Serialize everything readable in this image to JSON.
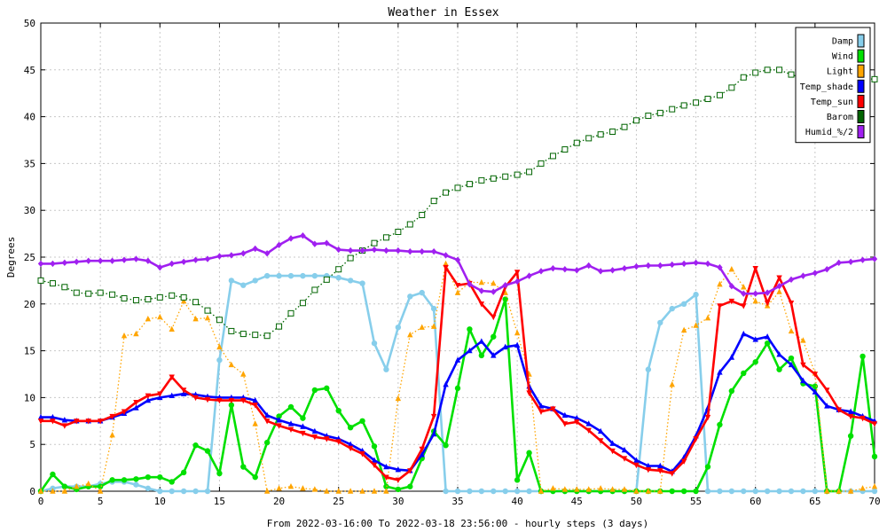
{
  "chart_data": {
    "type": "line",
    "title": "Weather in Essex",
    "xlabel": "From 2022-03-16:00 To 2022-03-18 23:56:00 - hourly steps (3 days)",
    "ylabel": "Degrees",
    "xlim": [
      0,
      70
    ],
    "ylim": [
      0,
      50
    ],
    "xticks": [
      0,
      5,
      10,
      15,
      20,
      25,
      30,
      35,
      40,
      45,
      50,
      55,
      60,
      65,
      70
    ],
    "yticks": [
      0,
      5,
      10,
      15,
      20,
      25,
      30,
      35,
      40,
      45,
      50
    ],
    "grid": true,
    "legend_position": "top-right",
    "x": [
      0,
      1,
      2,
      3,
      4,
      5,
      6,
      7,
      8,
      9,
      10,
      11,
      12,
      13,
      14,
      15,
      16,
      17,
      18,
      19,
      20,
      21,
      22,
      23,
      24,
      25,
      26,
      27,
      28,
      29,
      30,
      31,
      32,
      33,
      34,
      35,
      36,
      37,
      38,
      39,
      40,
      41,
      42,
      43,
      44,
      45,
      46,
      47,
      48,
      49,
      50,
      51,
      52,
      53,
      54,
      55,
      56,
      57,
      58,
      59,
      60,
      61,
      62,
      63,
      64,
      65,
      66,
      67,
      68,
      69,
      70
    ],
    "series": [
      {
        "name": "Damp",
        "color": "#87ceeb",
        "marker": "circle",
        "style": "solid",
        "values": [
          0,
          0.3,
          0.5,
          0.5,
          0.5,
          0.8,
          1.0,
          1.0,
          0.7,
          0.3,
          0,
          0,
          0,
          0,
          0,
          14,
          22.5,
          22,
          22.5,
          23,
          23,
          23,
          23,
          23,
          23,
          22.8,
          22.5,
          22.2,
          15.8,
          13,
          17.5,
          20.8,
          21.2,
          19.5,
          0,
          0,
          0,
          0,
          0,
          0,
          0,
          0,
          0,
          0,
          0,
          0,
          0,
          0,
          0,
          0,
          0,
          13,
          18,
          19.5,
          20,
          21,
          0,
          0,
          0,
          0,
          0,
          0,
          0,
          0,
          0,
          0,
          0,
          0,
          0,
          0,
          0
        ]
      },
      {
        "name": "Wind",
        "color": "#00e000",
        "marker": "circle",
        "style": "solid",
        "values": [
          0,
          1.8,
          0.5,
          0.2,
          0.5,
          0.5,
          1.2,
          1.2,
          1.3,
          1.5,
          1.5,
          1,
          2,
          4.9,
          4.3,
          1.9,
          9.2,
          2.6,
          1.5,
          5.2,
          8,
          9,
          7.8,
          10.8,
          11,
          8.6,
          6.8,
          7.5,
          4.8,
          0.5,
          0.2,
          0.5,
          3.5,
          6.4,
          4.9,
          11,
          17.3,
          14.5,
          16.5,
          20.5,
          1.2,
          4.1,
          0,
          0,
          0,
          0,
          0,
          0,
          0,
          0,
          0,
          0,
          0,
          0,
          0,
          0,
          2.6,
          7.1,
          10.7,
          12.6,
          13.8,
          15.8,
          13,
          14.2,
          11.5,
          11.2,
          0,
          0,
          5.9,
          14.4,
          3.7
        ]
      },
      {
        "name": "Light",
        "color": "#ffa500",
        "marker": "triangle-up",
        "style": "dotted",
        "values": [
          0,
          0,
          0,
          0.5,
          0.8,
          0,
          6,
          16.6,
          16.8,
          18.4,
          18.6,
          17.3,
          20.3,
          18.4,
          18.5,
          15.4,
          13.5,
          12.5,
          7.2,
          0,
          0.3,
          0.5,
          0.3,
          0.2,
          0,
          0,
          0,
          0,
          0,
          0,
          9.9,
          16.7,
          17.5,
          17.6,
          24.3,
          21.2,
          22.3,
          22.3,
          22.2,
          21.2,
          16.9,
          12.5,
          0,
          0.3,
          0.2,
          0.2,
          0.2,
          0.3,
          0.2,
          0.2,
          0,
          0,
          0,
          11.4,
          17.2,
          17.7,
          18.5,
          22.1,
          23.7,
          21.8,
          20.3,
          19.8,
          21.3,
          17.1,
          16.1,
          12.6,
          0,
          0,
          0,
          0.3,
          0.5
        ]
      },
      {
        "name": "Temp_shade",
        "color": "#0000ff",
        "marker": "triangle-up",
        "style": "solid",
        "values": [
          7.9,
          7.9,
          7.6,
          7.5,
          7.5,
          7.5,
          7.9,
          8.3,
          8.9,
          9.7,
          10,
          10.2,
          10.4,
          10.3,
          10.1,
          10,
          10,
          10,
          9.7,
          8.1,
          7.6,
          7.2,
          6.9,
          6.4,
          5.9,
          5.6,
          5,
          4.3,
          3.3,
          2.6,
          2.3,
          2.2,
          3.9,
          6.1,
          11.4,
          14,
          15,
          16,
          14.5,
          15.4,
          15.6,
          11.2,
          9.1,
          8.8,
          8.1,
          7.8,
          7.2,
          6.4,
          5.1,
          4.4,
          3.3,
          2.7,
          2.7,
          2.1,
          3.6,
          5.9,
          8.9,
          12.7,
          14.3,
          16.8,
          16.2,
          16.5,
          14.6,
          13.5,
          11.8,
          10.6,
          9.1,
          8.7,
          8.5,
          8,
          7.5
        ]
      },
      {
        "name": "Temp_sun",
        "color": "#ff0000",
        "marker": "triangle-down",
        "style": "solid",
        "values": [
          7.5,
          7.5,
          7,
          7.5,
          7.5,
          7.5,
          8,
          8.5,
          9.5,
          10.2,
          10.4,
          12.2,
          10.8,
          10,
          9.8,
          9.7,
          9.7,
          9.7,
          9.2,
          7.5,
          7,
          6.6,
          6.2,
          5.8,
          5.6,
          5.3,
          4.6,
          4,
          2.8,
          1.5,
          1.2,
          2.2,
          4.5,
          8,
          23.9,
          22,
          22.2,
          20,
          18.6,
          21.8,
          23.4,
          10.5,
          8.5,
          8.8,
          7.2,
          7.4,
          6.5,
          5.4,
          4.3,
          3.5,
          2.8,
          2.3,
          2.2,
          1.9,
          3.2,
          5.6,
          7.9,
          19.8,
          20.3,
          19.8,
          23.8,
          20.1,
          22.8,
          20.1,
          13.5,
          12.5,
          10.8,
          8.7,
          8,
          7.8,
          7.2
        ]
      },
      {
        "name": "Barom",
        "color": "#006400",
        "marker": "square",
        "style": "dotted",
        "values": [
          22.5,
          22.2,
          21.8,
          21.2,
          21.1,
          21.2,
          21,
          20.6,
          20.4,
          20.5,
          20.7,
          20.9,
          20.7,
          20.2,
          19.3,
          18.3,
          17.1,
          16.8,
          16.7,
          16.6,
          17.6,
          19,
          20.1,
          21.5,
          22.6,
          23.7,
          24.9,
          25.7,
          26.5,
          27.1,
          27.7,
          28.5,
          29.5,
          31,
          31.9,
          32.4,
          32.8,
          33.2,
          33.4,
          33.6,
          33.8,
          34.1,
          35,
          35.8,
          36.5,
          37.2,
          37.7,
          38.1,
          38.4,
          38.9,
          39.6,
          40.1,
          40.4,
          40.8,
          41.2,
          41.5,
          41.9,
          42.3,
          43.1,
          44.2,
          44.7,
          45,
          45,
          44.5,
          44.1,
          43.8,
          43.9,
          43.2,
          43.4,
          44.1,
          44
        ]
      },
      {
        "name": "Humid_%/2",
        "color": "#a020f0",
        "marker": "diamond",
        "style": "solid",
        "values": [
          24.3,
          24.3,
          24.4,
          24.5,
          24.6,
          24.6,
          24.6,
          24.7,
          24.8,
          24.6,
          23.9,
          24.3,
          24.5,
          24.7,
          24.8,
          25.1,
          25.2,
          25.4,
          25.9,
          25.4,
          26.3,
          27,
          27.3,
          26.4,
          26.5,
          25.8,
          25.7,
          25.7,
          25.8,
          25.7,
          25.7,
          25.6,
          25.6,
          25.6,
          25.2,
          24.7,
          22.1,
          21.4,
          21.3,
          22,
          22.4,
          23,
          23.5,
          23.8,
          23.7,
          23.6,
          24.1,
          23.5,
          23.6,
          23.8,
          24,
          24.1,
          24.1,
          24.2,
          24.3,
          24.4,
          24.3,
          23.9,
          21.9,
          21.1,
          21.1,
          21.2,
          21.9,
          22.6,
          23,
          23.3,
          23.7,
          24.4,
          24.5,
          24.7,
          24.8
        ]
      }
    ]
  }
}
